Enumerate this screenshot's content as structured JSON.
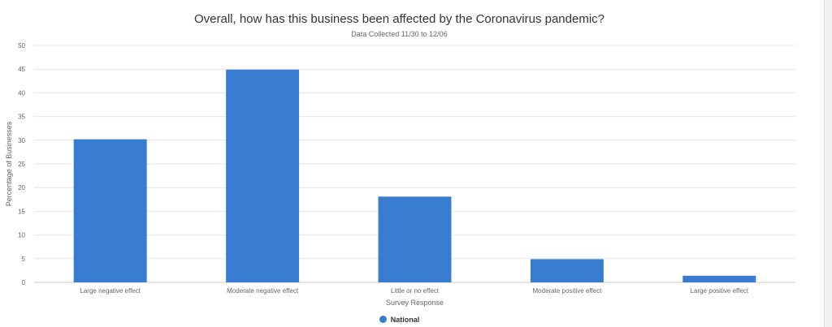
{
  "colors": {
    "series": "#377ccf",
    "grid": "#e6e6e6",
    "axis": "#cccccc",
    "text": "#666666"
  },
  "chart_data": {
    "type": "bar",
    "title": "Overall, how has this business been affected by the Coronavirus pandemic?",
    "subtitle": "Data Collected 11/30 to 12/06",
    "xlabel": "Survey Response",
    "ylabel": "Percentage of Businesses",
    "ylim": [
      0,
      50
    ],
    "yticks": [
      0,
      5,
      10,
      15,
      20,
      25,
      30,
      35,
      40,
      45,
      50
    ],
    "grid": true,
    "legend_position": "bottom",
    "categories": [
      "Large negative effect",
      "Moderate negative effect",
      "Little or no effect",
      "Moderate positive effect",
      "Large positive effect"
    ],
    "series": [
      {
        "name": "National",
        "values": [
          30.2,
          44.9,
          18.1,
          4.9,
          1.4
        ]
      }
    ]
  }
}
